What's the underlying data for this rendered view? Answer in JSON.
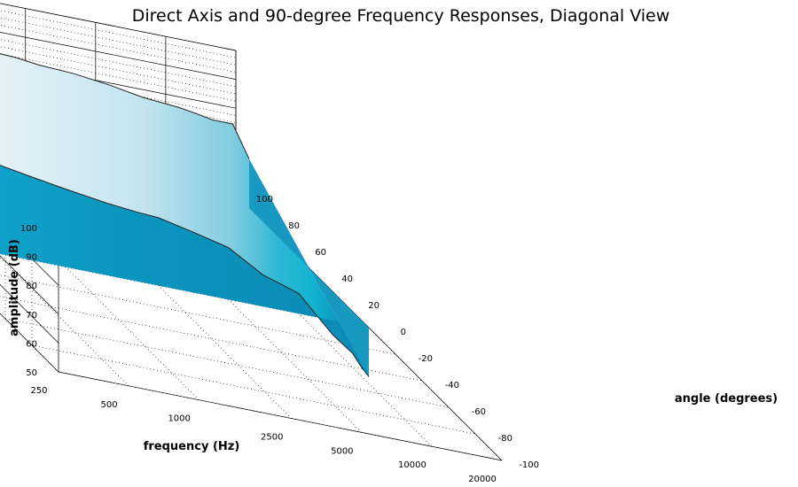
{
  "chart_data": {
    "type": "area",
    "title": "Direct Axis and 90-degree Frequency Responses, Diagonal View",
    "xlabel": "frequency (Hz)",
    "ylabel": "amplitude (dB)",
    "zlabel": "angle (degrees)",
    "x_ticks": [
      "250",
      "500",
      "1000",
      "2500",
      "5000",
      "10000",
      "20000"
    ],
    "y_ticks": [
      "50",
      "60",
      "70",
      "80",
      "90",
      "100"
    ],
    "z_ticks": [
      "-100",
      "-80",
      "-60",
      "-40",
      "-20",
      "0",
      "20",
      "40",
      "60",
      "80",
      "100"
    ],
    "ylim": [
      50,
      100
    ],
    "zlim": [
      -100,
      100
    ],
    "xscale": "log",
    "grid": true,
    "series": [
      {
        "angle": 0,
        "freq": [
          250,
          350,
          500,
          700,
          1000,
          1500,
          2000,
          2500,
          3500,
          5000,
          7000,
          10000,
          14000,
          17000,
          18500,
          20000
        ],
        "db": [
          83,
          80,
          81,
          79,
          77,
          75,
          74,
          73.5,
          71,
          68,
          61,
          57,
          45,
          40,
          36,
          33
        ]
      },
      {
        "angle": 90,
        "freq": [
          250,
          500,
          1000,
          2000,
          2500,
          3500,
          5000,
          7000,
          10000,
          12000,
          14000,
          17000,
          20000
        ],
        "db": [
          88,
          87,
          87,
          86,
          85,
          84.5,
          83,
          81,
          80,
          79,
          78,
          78,
          67
        ]
      }
    ]
  }
}
